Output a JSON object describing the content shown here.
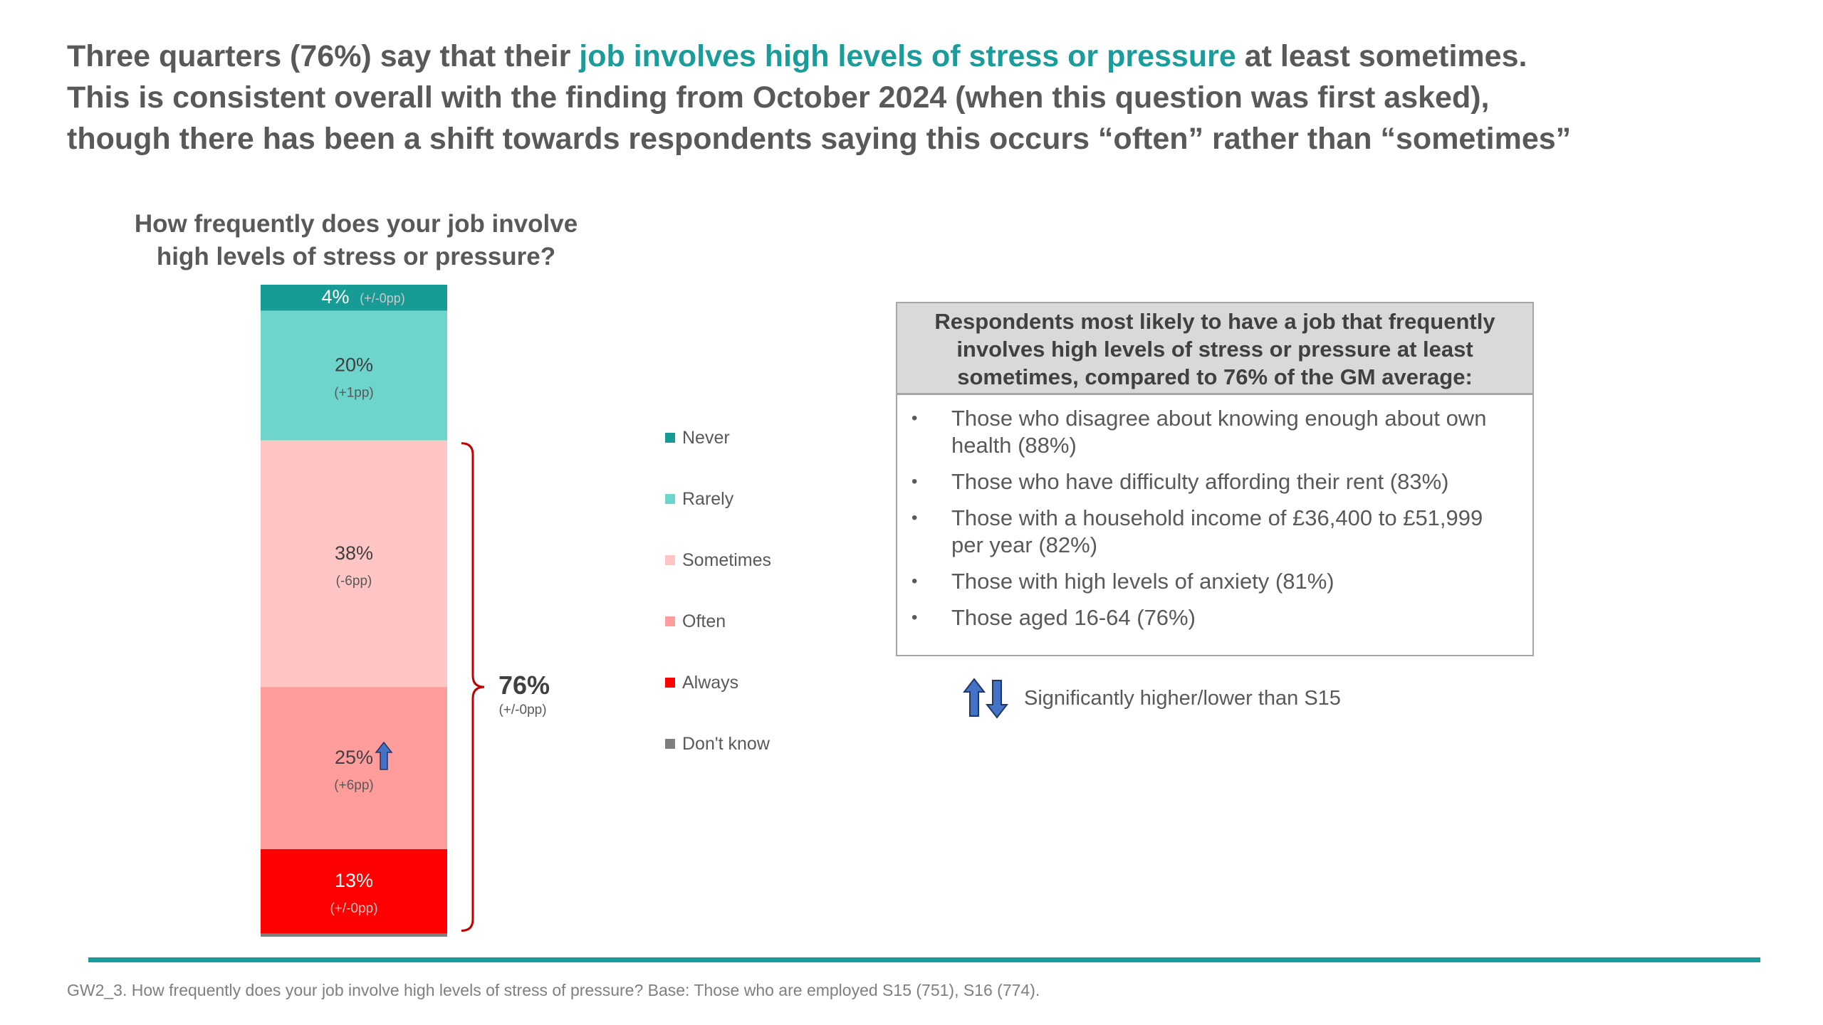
{
  "headline": {
    "part1": "Three quarters (76%) say that their ",
    "highlight": "job involves high levels of stress or pressure",
    "part2": " at least sometimes.",
    "line2": "This is consistent overall with the finding from October 2024 (when this question was first asked),",
    "line3": "though there has been a shift towards respondents saying this occurs “often” rather than “sometimes”"
  },
  "chart_data": {
    "type": "bar",
    "stacked": true,
    "title_line1": "How frequently does your job involve",
    "title_line2": "high levels of stress or pressure?",
    "segments": [
      {
        "name": "Never",
        "value": 4,
        "label": "4%",
        "change": "(+/-0pp)",
        "color": "#169b95",
        "sig": "none"
      },
      {
        "name": "Rarely",
        "value": 20,
        "label": "20%",
        "change": "(+1pp)",
        "color": "#6dd5cc",
        "sig": "none"
      },
      {
        "name": "Sometimes",
        "value": 38,
        "label": "38%",
        "change": "(-6pp)",
        "color": "#ffc4c4",
        "sig": "none"
      },
      {
        "name": "Often",
        "value": 25,
        "label": "25%",
        "change": "(+6pp)",
        "color": "#ff9c9c",
        "sig": "higher"
      },
      {
        "name": "Always",
        "value": 13,
        "label": "13%",
        "change": "(+/-0pp)",
        "color": "#ff0000",
        "sig": "none"
      },
      {
        "name": "Don't know",
        "value": 0.5,
        "label": "",
        "change": "",
        "color": "#7f7f7f",
        "sig": "none"
      }
    ],
    "bracket": {
      "label": "76%",
      "change": "(+/-0pp)",
      "color": "#c00000",
      "covers": [
        "Sometimes",
        "Often",
        "Always"
      ]
    },
    "legend_order": [
      "Never",
      "Rarely",
      "Sometimes",
      "Often",
      "Always",
      "Don't know"
    ]
  },
  "callout": {
    "header": "Respondents most likely to have a job that frequently involves high levels of stress or pressure at least sometimes, compared to 76% of the GM average:",
    "bullet": "•",
    "items": [
      "Those who disagree about knowing enough about own health (88%)",
      "Those who have difficulty affording their rent (83%)",
      "Those with a household income of £36,400 to £51,999 per year (82%)",
      "Those with high levels of anxiety (81%)",
      "Those aged 16-64 (76%)"
    ]
  },
  "significance_note": "Significantly higher/lower than S15",
  "footnote": "GW2_3. How frequently does your job involve high levels of stress of pressure? Base: Those who are employed S15 (751), S16 (774).",
  "colors": {
    "accent": "#1a9c9a",
    "arrow": "#4472c4",
    "text": "#595959"
  }
}
